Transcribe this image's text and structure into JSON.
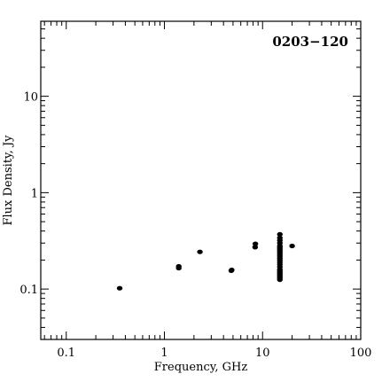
{
  "chart_data": {
    "type": "scatter",
    "title": "0203−120",
    "xlabel": "Frequency, GHz",
    "ylabel": "Flux Density, Jy",
    "xscale": "log",
    "yscale": "log",
    "xlim": [
      0.055,
      100
    ],
    "ylim": [
      0.03,
      60
    ],
    "grid": false,
    "x_ticks": [
      {
        "value": 0.1,
        "label": "0.1"
      },
      {
        "value": 1,
        "label": "1"
      },
      {
        "value": 10,
        "label": "10"
      },
      {
        "value": 100,
        "label": "100"
      }
    ],
    "y_ticks": [
      {
        "value": 0.1,
        "label": "0.1"
      },
      {
        "value": 1,
        "label": "1"
      },
      {
        "value": 10,
        "label": "10"
      }
    ],
    "series": [
      {
        "color": "#000000",
        "x": [
          0.35,
          1.4,
          1.4,
          2.3,
          4.8,
          4.85,
          8.4,
          8.45,
          20,
          15,
          15,
          15,
          15,
          15,
          15,
          15,
          15,
          15,
          15,
          15,
          15,
          15,
          15,
          15,
          15,
          15,
          15,
          15,
          15,
          15,
          15,
          15,
          15
        ],
        "y": [
          0.102,
          0.165,
          0.172,
          0.243,
          0.155,
          0.158,
          0.272,
          0.295,
          0.28,
          0.125,
          0.13,
          0.135,
          0.14,
          0.145,
          0.15,
          0.155,
          0.16,
          0.17,
          0.18,
          0.19,
          0.2,
          0.21,
          0.22,
          0.23,
          0.24,
          0.25,
          0.26,
          0.27,
          0.28,
          0.3,
          0.32,
          0.34,
          0.37
        ]
      }
    ]
  }
}
